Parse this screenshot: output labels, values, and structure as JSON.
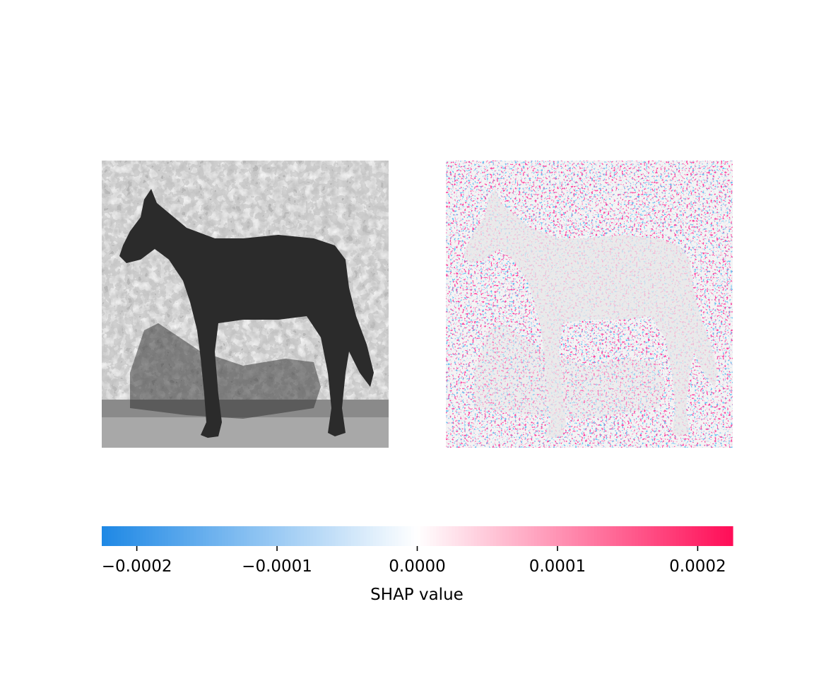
{
  "chart_data": {
    "type": "heatmap",
    "panels": [
      {
        "content": "grayscale photograph of a dark horse standing in profile in front of a hedge, with its shadow on the ground"
      },
      {
        "content": "SHAP attribution overlay on a faded copy of the photograph; scattered red (positive) and blue (negative) pixels"
      }
    ],
    "colorbar": {
      "xlabel": "SHAP value",
      "range": [
        -0.000225,
        0.000225
      ],
      "ticks": [
        -0.0002,
        -0.0001,
        0.0,
        0.0001,
        0.0002
      ],
      "tick_labels": [
        "−0.0002",
        "−0.0001",
        "0.0000",
        "0.0001",
        "0.0002"
      ],
      "colors": {
        "negative": "#1e88e5",
        "zero": "#ffffff",
        "positive": "#ff0d57"
      }
    }
  }
}
